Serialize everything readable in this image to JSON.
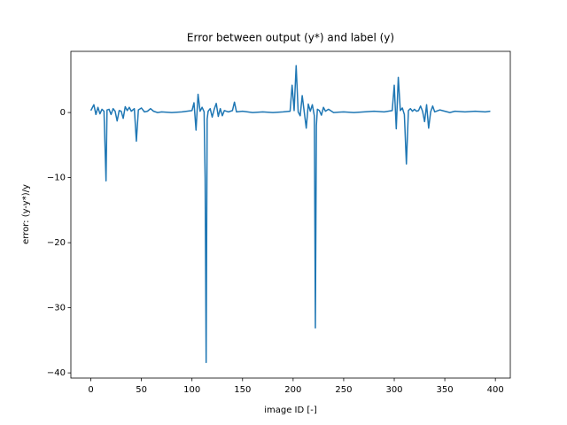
{
  "chart_data": {
    "type": "line",
    "title": "Error between output (y*) and label (y)",
    "x_label": "image ID [-]",
    "y_label": "error: (y-y*)/y",
    "color": "#1f77b4",
    "x": [
      0,
      3,
      5,
      7,
      9,
      11,
      13,
      15,
      16,
      18,
      20,
      22,
      24,
      26,
      28,
      30,
      32,
      34,
      36,
      38,
      40,
      43,
      45,
      47,
      50,
      53,
      56,
      59,
      62,
      66,
      70,
      80,
      90,
      100,
      102,
      104,
      106,
      108,
      110,
      112,
      113,
      114,
      115,
      116,
      118,
      120,
      122,
      124,
      126,
      128,
      130,
      132,
      136,
      140,
      142,
      144,
      150,
      160,
      170,
      180,
      190,
      197,
      199,
      201,
      203,
      205,
      207,
      209,
      211,
      213,
      215,
      217,
      219,
      221,
      222,
      223,
      224,
      226,
      228,
      230,
      232,
      235,
      240,
      250,
      260,
      270,
      280,
      290,
      298,
      300,
      302,
      304,
      306,
      308,
      310,
      312,
      314,
      316,
      318,
      320,
      322,
      324,
      326,
      328,
      330,
      332,
      334,
      336,
      338,
      340,
      345,
      350,
      355,
      360,
      370,
      380,
      390,
      395
    ],
    "values": [
      0.3,
      1.2,
      -0.3,
      0.8,
      -0.2,
      0.5,
      0.2,
      -10.5,
      0.4,
      0.5,
      -0.3,
      0.6,
      0.2,
      -1.3,
      0.3,
      0.2,
      -0.9,
      0.9,
      0.3,
      0.8,
      0.2,
      0.6,
      -4.4,
      0.4,
      0.7,
      0.1,
      0.2,
      0.6,
      0.2,
      0,
      0.1,
      0,
      0.1,
      0.3,
      1.5,
      -2.7,
      2.8,
      0.2,
      0.8,
      0.1,
      -10,
      -38.4,
      -1,
      0.2,
      0.6,
      -0.7,
      0.5,
      1.4,
      -0.6,
      0.6,
      -0.5,
      0.3,
      0.1,
      0.3,
      1.6,
      0.1,
      0.2,
      0,
      0.1,
      0,
      0.1,
      0.2,
      4.2,
      0.3,
      7.2,
      0.1,
      -0.5,
      2.6,
      0.1,
      -2.4,
      1.3,
      0.2,
      1.2,
      -0.5,
      -33.1,
      -2,
      0.5,
      0.3,
      -0.4,
      0.8,
      0.2,
      0.5,
      0,
      0.1,
      0,
      0.1,
      0.2,
      0.1,
      0.3,
      4.2,
      -2.5,
      5.4,
      0.3,
      0.7,
      -0.3,
      -7.9,
      0.3,
      0.6,
      0.2,
      0.5,
      0.2,
      0.3,
      1,
      0.2,
      -1.4,
      1.2,
      -2.4,
      0.1,
      1,
      0.1,
      0.4,
      0.2,
      0,
      0.2,
      0.1,
      0.2,
      0.1,
      0.2
    ],
    "xlim": [
      -19.75,
      414.75
    ],
    "ylim": [
      -40.8,
      9.4
    ],
    "xticks": [
      0,
      50,
      100,
      150,
      200,
      250,
      300,
      350,
      400
    ],
    "yticks": [
      {
        "value": -40,
        "label": "−40"
      },
      {
        "value": -30,
        "label": "−30"
      },
      {
        "value": -20,
        "label": "−20"
      },
      {
        "value": -10,
        "label": "−10"
      },
      0
    ]
  }
}
